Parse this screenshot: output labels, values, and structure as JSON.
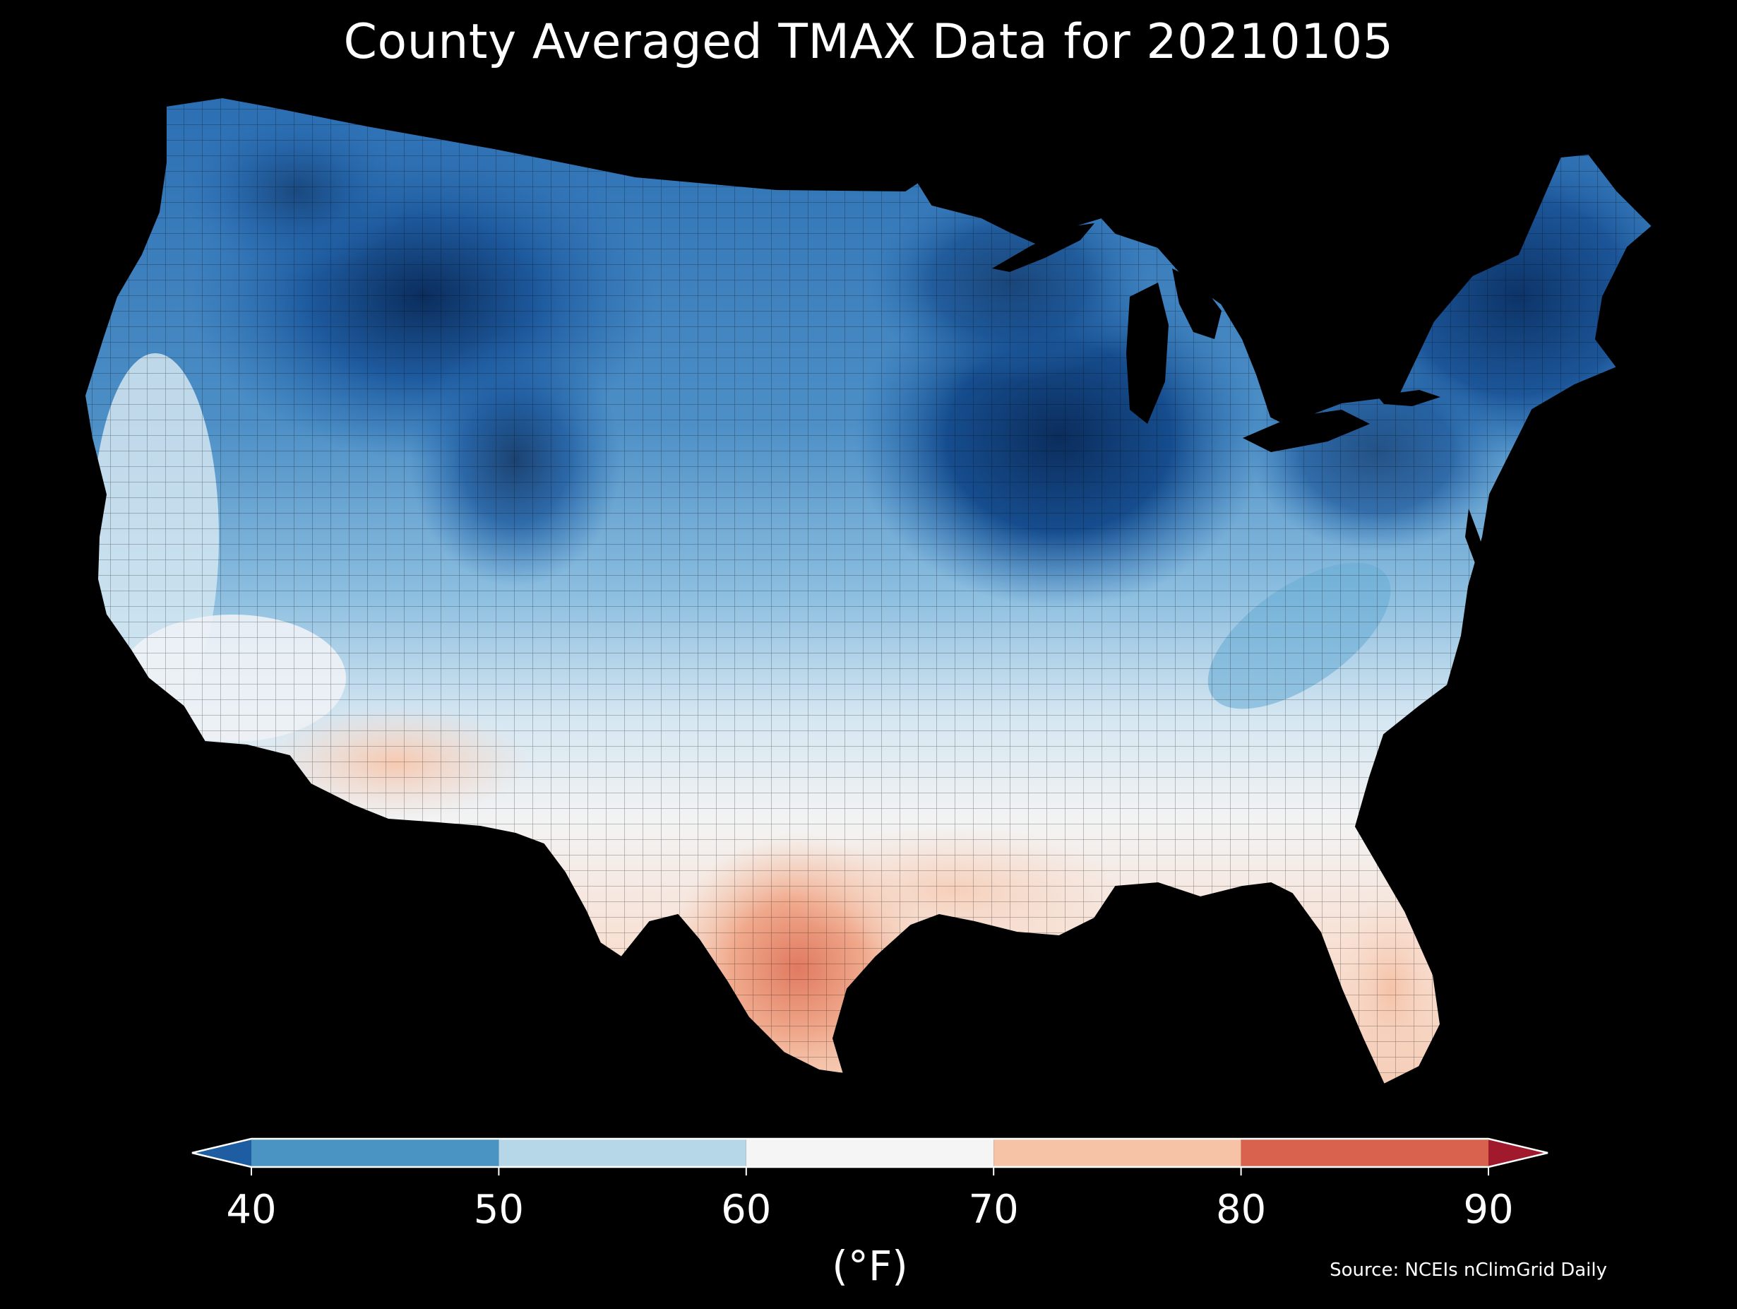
{
  "title": "County Averaged TMAX Data for 20210105",
  "source": "Source: NCEIs nClimGrid Daily",
  "colorbar": {
    "unit": "(°F)",
    "ticks": [
      "40",
      "50",
      "60",
      "70",
      "80",
      "90"
    ],
    "bins": [
      {
        "from": 40,
        "to": 50,
        "color": "#4a94c4"
      },
      {
        "from": 50,
        "to": 60,
        "color": "#b5d7e8"
      },
      {
        "from": 60,
        "to": 70,
        "color": "#f5f5f5"
      },
      {
        "from": 70,
        "to": 80,
        "color": "#f7c3a6"
      },
      {
        "from": 80,
        "to": 90,
        "color": "#d9624f"
      }
    ],
    "under_color": "#1f5da2",
    "over_color": "#a0192d"
  },
  "map": {
    "region": "contiguous-united-states",
    "colors": {
      "coldest": "#0b2d5c",
      "cold": "#2a6db2",
      "cool": "#6aaed6",
      "mild": "#c8e0ee",
      "neutral": "#f3f3f3",
      "warm": "#f5c8ae",
      "hot": "#e28c72"
    }
  }
}
